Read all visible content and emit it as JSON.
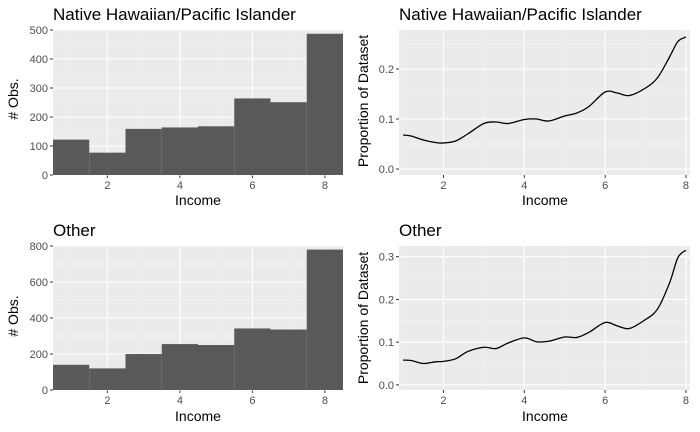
{
  "chart_data": [
    {
      "type": "bar",
      "title": "Native Hawaiian/Pacific Islander",
      "xlabel": "Income",
      "ylabel": "# Obs.",
      "bins": [
        1,
        2,
        3,
        4,
        5,
        6,
        7,
        8
      ],
      "values": [
        122,
        77,
        159,
        164,
        168,
        264,
        251,
        487
      ],
      "bin_width": 1,
      "xlim": [
        0.5,
        8.5
      ],
      "ylim": [
        0,
        500
      ],
      "x_ticks": [
        2,
        4,
        6,
        8
      ],
      "y_ticks": [
        0,
        100,
        200,
        300,
        400,
        500
      ],
      "grid": true
    },
    {
      "type": "line",
      "title": "Native Hawaiian/Pacific Islander",
      "xlabel": "Income",
      "ylabel": "Proportion of Dataset",
      "x": [
        1.0,
        1.2,
        1.5,
        1.8,
        2.0,
        2.3,
        2.6,
        3.0,
        3.3,
        3.6,
        4.0,
        4.3,
        4.6,
        5.0,
        5.3,
        5.6,
        6.0,
        6.3,
        6.6,
        7.0,
        7.3,
        7.6,
        7.8,
        8.0
      ],
      "y": [
        0.068,
        0.066,
        0.058,
        0.053,
        0.052,
        0.056,
        0.07,
        0.091,
        0.094,
        0.091,
        0.099,
        0.1,
        0.096,
        0.106,
        0.112,
        0.125,
        0.154,
        0.152,
        0.147,
        0.162,
        0.183,
        0.225,
        0.255,
        0.264
      ],
      "xlim": [
        0.9,
        8.1
      ],
      "ylim": [
        -0.012,
        0.278
      ],
      "x_ticks": [
        2,
        4,
        6,
        8
      ],
      "y_ticks": [
        0.0,
        0.1,
        0.2
      ],
      "grid": true
    },
    {
      "type": "bar",
      "title": "Other",
      "xlabel": "Income",
      "ylabel": "# Obs.",
      "bins": [
        1,
        2,
        3,
        4,
        5,
        6,
        7,
        8
      ],
      "values": [
        140,
        120,
        200,
        255,
        250,
        342,
        336,
        780
      ],
      "bin_width": 1,
      "xlim": [
        0.5,
        8.5
      ],
      "ylim": [
        0,
        800
      ],
      "x_ticks": [
        2,
        4,
        6,
        8
      ],
      "y_ticks": [
        0,
        200,
        400,
        600,
        800
      ],
      "grid": true
    },
    {
      "type": "line",
      "title": "Other",
      "xlabel": "Income",
      "ylabel": "Proportion of Dataset",
      "x": [
        1.0,
        1.2,
        1.5,
        1.8,
        2.0,
        2.3,
        2.6,
        3.0,
        3.3,
        3.6,
        4.0,
        4.3,
        4.6,
        5.0,
        5.3,
        5.6,
        6.0,
        6.3,
        6.6,
        7.0,
        7.3,
        7.6,
        7.8,
        8.0
      ],
      "y": [
        0.058,
        0.057,
        0.05,
        0.054,
        0.055,
        0.061,
        0.078,
        0.088,
        0.085,
        0.098,
        0.11,
        0.101,
        0.102,
        0.112,
        0.111,
        0.123,
        0.146,
        0.138,
        0.132,
        0.153,
        0.178,
        0.24,
        0.298,
        0.315
      ],
      "xlim": [
        0.9,
        8.1
      ],
      "ylim": [
        -0.012,
        0.325
      ],
      "x_ticks": [
        2,
        4,
        6,
        8
      ],
      "y_ticks": [
        0.0,
        0.1,
        0.2,
        0.3
      ],
      "grid": true
    }
  ]
}
